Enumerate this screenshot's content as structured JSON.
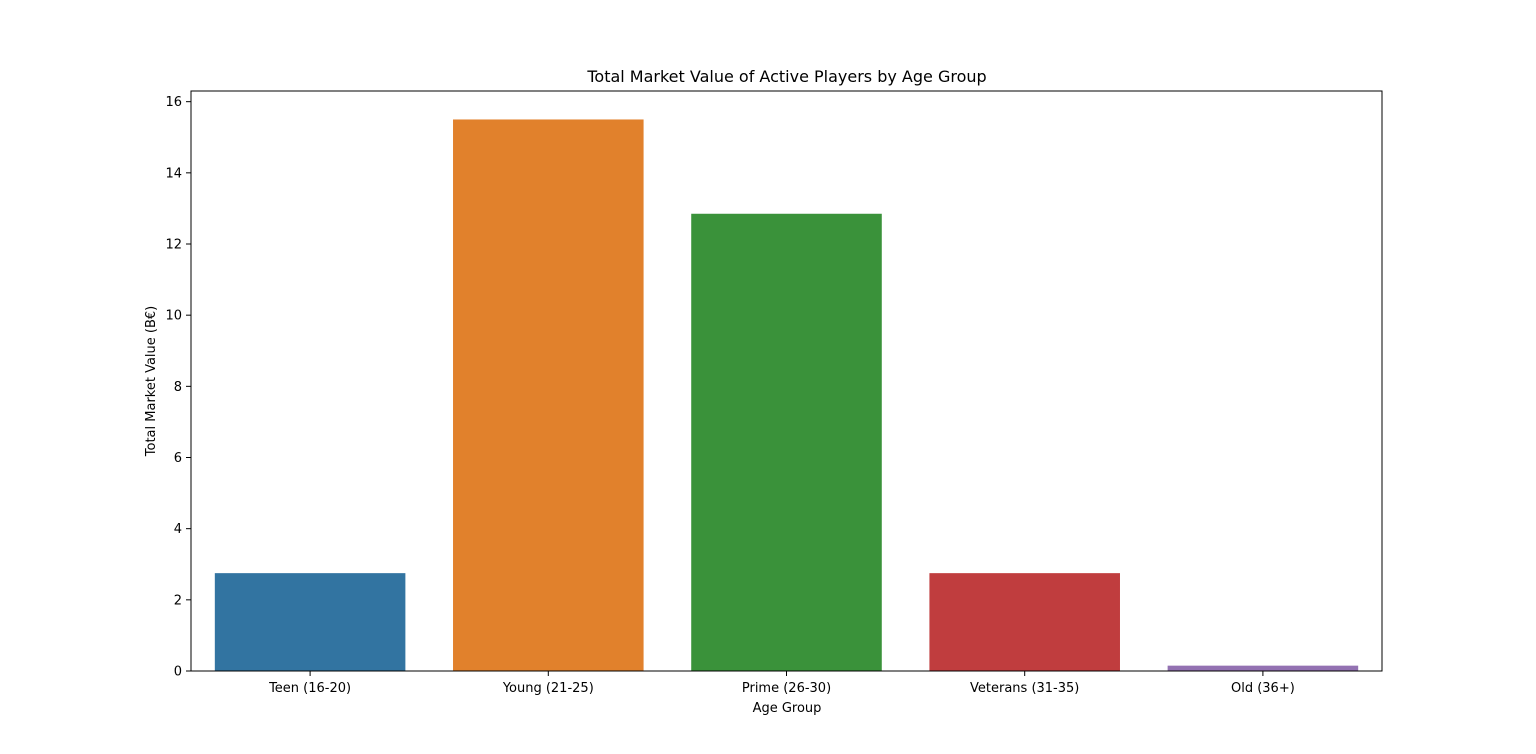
{
  "chart_data": {
    "type": "bar",
    "title": "Total Market Value of Active Players by Age Group",
    "xlabel": "Age Group",
    "ylabel": "Total Market Value (B€)",
    "categories": [
      "Teen (16-20)",
      "Young (21-25)",
      "Prime (26-30)",
      "Veterans (31-35)",
      "Old (36+)"
    ],
    "values": [
      2.75,
      15.5,
      12.85,
      2.75,
      0.15
    ],
    "colors": [
      "#3274a1",
      "#e1812c",
      "#3a923a",
      "#c03d3e",
      "#9372b2"
    ],
    "ylim": [
      0,
      16.3
    ],
    "yticks": [
      0,
      2,
      4,
      6,
      8,
      10,
      12,
      14,
      16
    ],
    "grid": false,
    "legend": "none"
  }
}
